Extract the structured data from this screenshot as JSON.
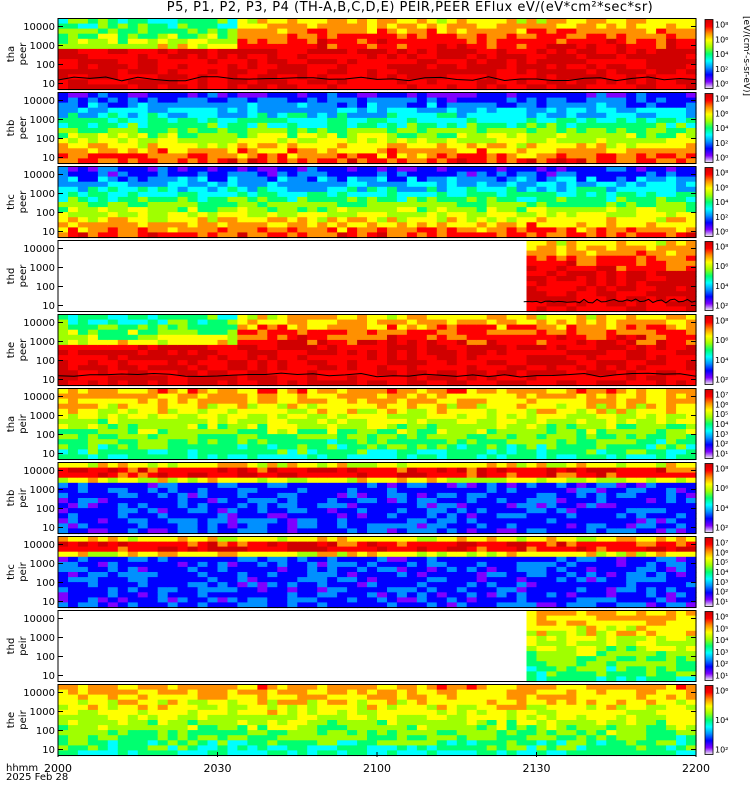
{
  "chart_data": {
    "type": "heatmap",
    "title": "P5, P1, P2, P3, P4 (TH-A,B,C,D,E) PEIR,PEER EFlux eV/(eV*cm²*sec*sr)",
    "xaxis": {
      "label": "hhmm",
      "date": "2025 Feb 28",
      "ticks": [
        "2000",
        "2030",
        "2100",
        "2130",
        "2200"
      ]
    },
    "colorbar_title": "[eV/(cm²-s-sr-eV)]",
    "colorscale": [
      "#f0f0f0",
      "#7f00ff",
      "#0000ff",
      "#0090ff",
      "#00ffff",
      "#00ff70",
      "#a0ff00",
      "#ffff00",
      "#ff9000",
      "#ff0000",
      "#d00000"
    ],
    "panels": [
      {
        "probe": "tha",
        "species": "peer",
        "ylabel": "tha peer",
        "yticks": [
          "10",
          "100",
          "1000",
          "10000"
        ],
        "cbar_ticks": [
          "10⁸",
          "10⁶",
          "10⁴",
          "10²",
          "10⁰"
        ],
        "cbar_min_exp": 0,
        "cbar_max_exp": 8,
        "data_start_fraction": 0.0,
        "has_sc_potential_line": true
      },
      {
        "probe": "thb",
        "species": "peer",
        "ylabel": "thb peer",
        "yticks": [
          "10",
          "100",
          "1000",
          "10000"
        ],
        "cbar_ticks": [
          "10⁸",
          "10⁶",
          "10⁴",
          "10²",
          "10⁰"
        ],
        "cbar_min_exp": 0,
        "cbar_max_exp": 8,
        "data_start_fraction": 0.0,
        "has_sc_potential_line": false
      },
      {
        "probe": "thc",
        "species": "peer",
        "ylabel": "thc peer",
        "yticks": [
          "10",
          "100",
          "1000",
          "10000"
        ],
        "cbar_ticks": [
          "10⁸",
          "10⁶",
          "10⁴",
          "10²",
          "10⁰"
        ],
        "cbar_min_exp": 0,
        "cbar_max_exp": 8,
        "data_start_fraction": 0.0,
        "has_sc_potential_line": false
      },
      {
        "probe": "thd",
        "species": "peer",
        "ylabel": "thd peer",
        "yticks": [
          "10",
          "100",
          "1000",
          "10000"
        ],
        "cbar_ticks": [
          "10⁸",
          "10⁶",
          "10⁴",
          "10²"
        ],
        "cbar_min_exp": 1,
        "cbar_max_exp": 8,
        "data_start_fraction": 0.73,
        "has_sc_potential_line": true
      },
      {
        "probe": "the",
        "species": "peer",
        "ylabel": "the peer",
        "yticks": [
          "10",
          "100",
          "1000",
          "10000"
        ],
        "cbar_ticks": [
          "10⁸",
          "10⁶",
          "10⁴",
          "10²"
        ],
        "cbar_min_exp": 1,
        "cbar_max_exp": 8,
        "data_start_fraction": 0.0,
        "has_sc_potential_line": true
      },
      {
        "probe": "tha",
        "species": "peir",
        "ylabel": "tha peir",
        "yticks": [
          "10",
          "100",
          "1000",
          "10000"
        ],
        "cbar_ticks": [
          "10⁷",
          "10⁶",
          "10⁵",
          "10⁴",
          "10³",
          "10²",
          "10¹"
        ],
        "cbar_min_exp": 0,
        "cbar_max_exp": 7,
        "data_start_fraction": 0.0,
        "has_sc_potential_line": false
      },
      {
        "probe": "thb",
        "species": "peir",
        "ylabel": "thb peir",
        "yticks": [
          "10",
          "100",
          "1000",
          "10000"
        ],
        "cbar_ticks": [
          "10⁸",
          "10⁶",
          "10⁴",
          "10²"
        ],
        "cbar_min_exp": 1,
        "cbar_max_exp": 8,
        "data_start_fraction": 0.0,
        "has_sc_potential_line": false
      },
      {
        "probe": "thc",
        "species": "peir",
        "ylabel": "thc peir",
        "yticks": [
          "10",
          "100",
          "1000",
          "10000"
        ],
        "cbar_ticks": [
          "10⁷",
          "10⁶",
          "10⁵",
          "10⁴",
          "10³",
          "10²",
          "10¹"
        ],
        "cbar_min_exp": 0,
        "cbar_max_exp": 7,
        "data_start_fraction": 0.0,
        "has_sc_potential_line": false
      },
      {
        "probe": "thd",
        "species": "peir",
        "ylabel": "thd peir",
        "yticks": [
          "10",
          "100",
          "1000",
          "10000"
        ],
        "cbar_ticks": [
          "10⁶",
          "10⁵",
          "10⁴",
          "10³",
          "10²",
          "10¹"
        ],
        "cbar_min_exp": 0,
        "cbar_max_exp": 6,
        "data_start_fraction": 0.73,
        "has_sc_potential_line": false
      },
      {
        "probe": "the",
        "species": "peir",
        "ylabel": "the peir",
        "yticks": [
          "10",
          "100",
          "1000",
          "10000"
        ],
        "cbar_ticks": [
          "10⁶",
          "10⁴",
          "10²"
        ],
        "cbar_min_exp": 1,
        "cbar_max_exp": 7,
        "data_start_fraction": 0.0,
        "has_sc_potential_line": false
      }
    ]
  }
}
